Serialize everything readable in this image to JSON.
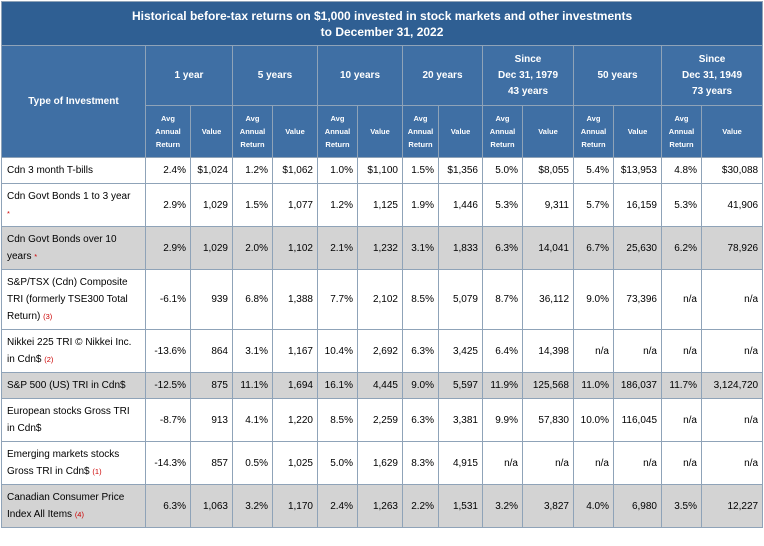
{
  "title_line1": "Historical before-tax returns on $1,000 invested in stock markets and other investments",
  "title_line2": "to December 31, 2022",
  "type_header": "Type of Investment",
  "periods": [
    {
      "lines": [
        "1 year"
      ]
    },
    {
      "lines": [
        "5 years"
      ]
    },
    {
      "lines": [
        "10 years"
      ]
    },
    {
      "lines": [
        "20 years"
      ]
    },
    {
      "lines": [
        "Since",
        "Dec 31, 1979",
        "43 years"
      ]
    },
    {
      "lines": [
        "50 years"
      ]
    },
    {
      "lines": [
        "Since",
        "Dec 31, 1949",
        "73 years"
      ]
    }
  ],
  "sub_avg": [
    "Avg",
    "Annual",
    "Return"
  ],
  "sub_value": "Value",
  "rows": [
    {
      "label": [
        "Cdn 3 month T-bills"
      ],
      "fn": "",
      "shaded": false,
      "cells": [
        "2.4%",
        "$1,024",
        "1.2%",
        "$1,062",
        "1.0%",
        "$1,100",
        "1.5%",
        "$1,356",
        "5.0%",
        "$8,055",
        "5.4%",
        "$13,953",
        "4.8%",
        "$30,088"
      ]
    },
    {
      "label": [
        "Cdn Govt Bonds 1 to 3 year"
      ],
      "fn": "*",
      "shaded": false,
      "cells": [
        "2.9%",
        "1,029",
        "1.5%",
        "1,077",
        "1.2%",
        "1,125",
        "1.9%",
        "1,446",
        "5.3%",
        "9,311",
        "5.7%",
        "16,159",
        "5.3%",
        "41,906"
      ]
    },
    {
      "label": [
        "Cdn Govt Bonds over 10",
        "years"
      ],
      "fn": "*",
      "shaded": true,
      "cells": [
        "2.9%",
        "1,029",
        "2.0%",
        "1,102",
        "2.1%",
        "1,232",
        "3.1%",
        "1,833",
        "6.3%",
        "14,041",
        "6.7%",
        "25,630",
        "6.2%",
        "78,926"
      ]
    },
    {
      "label": [
        "S&P/TSX (Cdn) Composite",
        "TRI (formerly TSE300 Total",
        "Return)"
      ],
      "fn": "(3)",
      "shaded": false,
      "cells": [
        "-6.1%",
        "939",
        "6.8%",
        "1,388",
        "7.7%",
        "2,102",
        "8.5%",
        "5,079",
        "8.7%",
        "36,112",
        "9.0%",
        "73,396",
        "n/a",
        "n/a"
      ]
    },
    {
      "label": [
        "Nikkei 225 TRI © Nikkei Inc.",
        "in Cdn$"
      ],
      "fn": "(2)",
      "shaded": false,
      "cells": [
        "-13.6%",
        "864",
        "3.1%",
        "1,167",
        "10.4%",
        "2,692",
        "6.3%",
        "3,425",
        "6.4%",
        "14,398",
        "n/a",
        "n/a",
        "n/a",
        "n/a"
      ]
    },
    {
      "label": [
        "S&P 500 (US) TRI in Cdn$"
      ],
      "fn": "",
      "shaded": true,
      "cells": [
        "-12.5%",
        "875",
        "11.1%",
        "1,694",
        "16.1%",
        "4,445",
        "9.0%",
        "5,597",
        "11.9%",
        "125,568",
        "11.0%",
        "186,037",
        "11.7%",
        "3,124,720"
      ]
    },
    {
      "label": [
        "European stocks Gross TRI",
        "in Cdn$"
      ],
      "fn": "",
      "shaded": false,
      "cells": [
        "-8.7%",
        "913",
        "4.1%",
        "1,220",
        "8.5%",
        "2,259",
        "6.3%",
        "3,381",
        "9.9%",
        "57,830",
        "10.0%",
        "116,045",
        "n/a",
        "n/a"
      ]
    },
    {
      "label": [
        "Emerging markets stocks",
        "Gross TRI in Cdn$"
      ],
      "fn": "(1)",
      "shaded": false,
      "cells": [
        "-14.3%",
        "857",
        "0.5%",
        "1,025",
        "5.0%",
        "1,629",
        "8.3%",
        "4,915",
        "n/a",
        "n/a",
        "n/a",
        "n/a",
        "n/a",
        "n/a"
      ]
    },
    {
      "label": [
        "Canadian Consumer Price",
        "Index All Items"
      ],
      "fn": "(4)",
      "shaded": true,
      "cells": [
        "6.3%",
        "1,063",
        "3.2%",
        "1,170",
        "2.4%",
        "1,263",
        "2.2%",
        "1,531",
        "3.2%",
        "3,827",
        "4.0%",
        "6,980",
        "3.5%",
        "12,227"
      ]
    }
  ],
  "colors": {
    "header_bg": "#3f6fa4",
    "title_bg": "#2f5f93",
    "shaded_row": "#d3d3d3",
    "footnote": "#cc0000"
  }
}
